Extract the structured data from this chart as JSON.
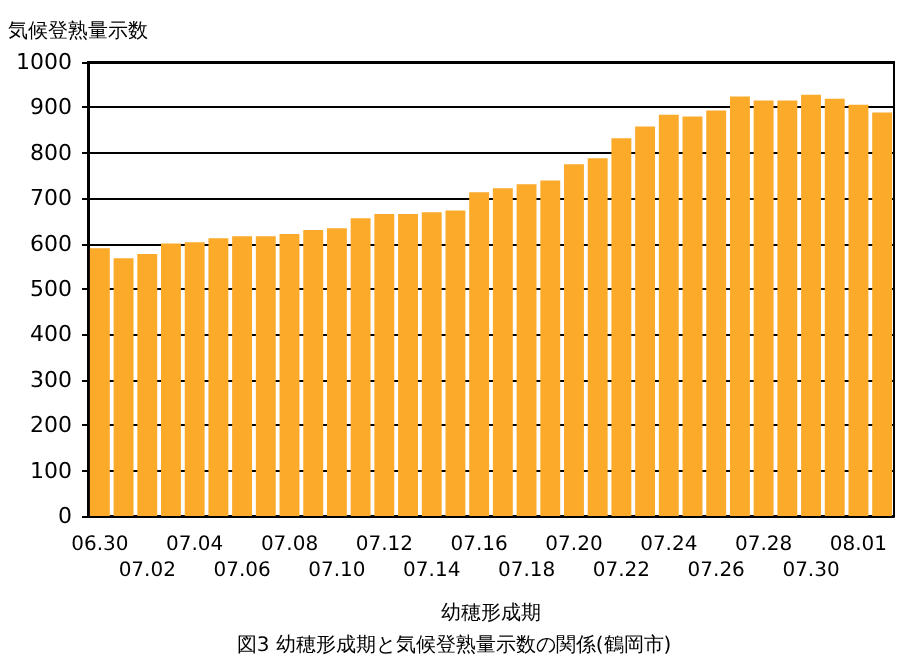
{
  "chart_data": {
    "type": "bar",
    "ylabel": "気候登熟量示数",
    "xlabel": "幼穂形成期",
    "annotations": [
      "図3 幼穂形成期と気候登熟量示数の関係(鶴岡市)"
    ],
    "categories": [
      "06.30",
      null,
      "07.02",
      null,
      "07.04",
      null,
      "07.06",
      null,
      "07.08",
      null,
      "07.10",
      null,
      "07.12",
      null,
      "07.14",
      null,
      "07.16",
      null,
      "07.18",
      null,
      "07.20",
      null,
      "07.22",
      null,
      "07.24",
      null,
      "07.26",
      null,
      "07.28",
      null,
      "07.30",
      null,
      "08.01",
      null
    ],
    "values": [
      590,
      568,
      577,
      600,
      603,
      612,
      616,
      616,
      621,
      630,
      634,
      656,
      665,
      665,
      669,
      673,
      713,
      722,
      731,
      739,
      775,
      788,
      832,
      858,
      884,
      880,
      893,
      924,
      915,
      915,
      928,
      919,
      906,
      889
    ],
    "color": "#fbaa2a",
    "ylim": [
      0,
      1000
    ],
    "yticks": [
      0,
      100,
      200,
      300,
      400,
      500,
      600,
      700,
      800,
      900,
      1000
    ],
    "grid": "y"
  }
}
